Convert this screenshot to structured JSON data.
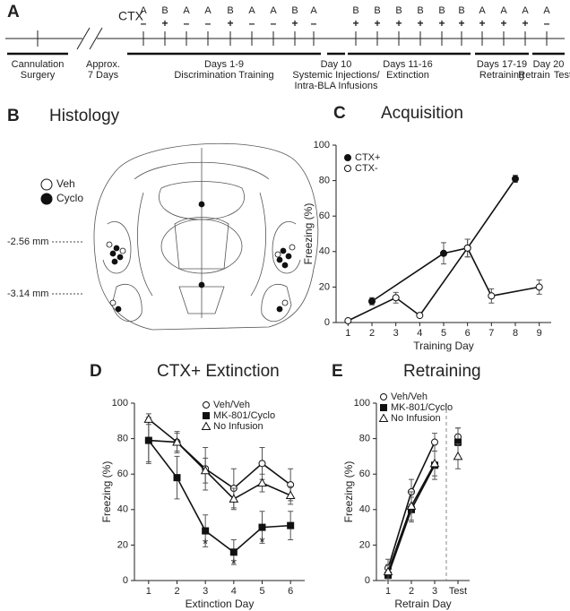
{
  "timeline": {
    "panel": "A",
    "ctx_label": "CTX",
    "sessions": [
      {
        "context": "A",
        "sign": "–"
      },
      {
        "context": "B",
        "sign": "+"
      },
      {
        "context": "A",
        "sign": "–"
      },
      {
        "context": "A",
        "sign": "–"
      },
      {
        "context": "B",
        "sign": "+"
      },
      {
        "context": "A",
        "sign": "–"
      },
      {
        "context": "A",
        "sign": "–"
      },
      {
        "context": "B",
        "sign": "+"
      },
      {
        "context": "A",
        "sign": "–"
      },
      {
        "context": "B",
        "sign": "+"
      },
      {
        "context": "B",
        "sign": "+"
      },
      {
        "context": "B",
        "sign": "+"
      },
      {
        "context": "B",
        "sign": "+"
      },
      {
        "context": "B",
        "sign": "+"
      },
      {
        "context": "B",
        "sign": "+"
      },
      {
        "context": "A",
        "sign": "+"
      },
      {
        "context": "A",
        "sign": "+"
      },
      {
        "context": "A",
        "sign": "+"
      },
      {
        "context": "A",
        "sign": "–"
      }
    ],
    "phases": [
      {
        "lines": [
          "Cannulation",
          "Surgery"
        ]
      },
      {
        "lines": [
          "Approx.",
          "7 Days"
        ]
      },
      {
        "lines": [
          "Days 1-9",
          "Discrimination Training"
        ]
      },
      {
        "lines": [
          "Day 10",
          "Systemic Injections/",
          "Intra-BLA Infusions"
        ]
      },
      {
        "lines": [
          "Days 11-16",
          "Extinction"
        ]
      },
      {
        "lines": [
          "Days 17-19",
          "Retraining"
        ]
      },
      {
        "lines": [
          "Day 20",
          "Retrain",
          "Test"
        ]
      }
    ]
  },
  "histology": {
    "panel": "B",
    "title": "Histology",
    "legend": [
      "Veh",
      "Cyclo"
    ],
    "levels": [
      "-2.56 mm",
      "-3.14 mm"
    ]
  },
  "chart_data": [
    {
      "type": "line",
      "panel": "C",
      "title": "Acquisition",
      "xlabel": "Training Day",
      "ylabel": "Freezing (%)",
      "xlim": [
        0.5,
        9.5
      ],
      "xticks": [
        1,
        2,
        3,
        4,
        5,
        6,
        7,
        8,
        9
      ],
      "ylim": [
        0,
        100
      ],
      "yticks": [
        0,
        20,
        40,
        60,
        80,
        100
      ],
      "series": [
        {
          "name": "CTX+",
          "marker": "filled-circle",
          "x": [
            2,
            5,
            6,
            8
          ],
          "values": [
            12,
            39,
            42,
            81
          ],
          "errors": [
            2,
            6,
            5,
            2
          ]
        },
        {
          "name": "CTX-",
          "marker": "open-circle",
          "x": [
            1,
            3,
            4,
            6,
            7,
            9
          ],
          "values": [
            1,
            14,
            4,
            42,
            15,
            20
          ],
          "errors": [
            1,
            3,
            1,
            5,
            4,
            4
          ]
        }
      ]
    },
    {
      "type": "line",
      "panel": "D",
      "title": "CTX+ Extinction",
      "xlabel": "Extinction Day",
      "ylabel": "Freezing (%)",
      "xlim": [
        0.5,
        6.5
      ],
      "xticks": [
        1,
        2,
        3,
        4,
        5,
        6
      ],
      "x": [
        1,
        2,
        3,
        4,
        5,
        6
      ],
      "ylim": [
        0,
        100
      ],
      "yticks": [
        0,
        20,
        40,
        60,
        80,
        100
      ],
      "series": [
        {
          "name": "Veh/Veh",
          "marker": "open-circle",
          "values": [
            79,
            78,
            63,
            52,
            66,
            54
          ],
          "errors": [
            12,
            6,
            12,
            11,
            9,
            9
          ]
        },
        {
          "name": "MK-801/Cyclo",
          "marker": "filled-square",
          "values": [
            79,
            58,
            28,
            16,
            30,
            31
          ],
          "errors": [
            13,
            12,
            9,
            7,
            9,
            8
          ]
        },
        {
          "name": "No Infusion",
          "marker": "open-triangle",
          "values": [
            91,
            78,
            62,
            46,
            55,
            48
          ],
          "errors": [
            3,
            5,
            7,
            6,
            5,
            5
          ]
        }
      ],
      "annotations": [
        {
          "text": "*",
          "x": 3,
          "y": 20
        },
        {
          "text": "*",
          "x": 4,
          "y": 9
        },
        {
          "text": "*",
          "x": 5,
          "y": 21
        }
      ]
    },
    {
      "type": "line",
      "panel": "E",
      "title": "Retraining",
      "xlabel": "Retrain Day",
      "ylabel": "Freezing (%)",
      "categories": [
        "1",
        "2",
        "3",
        "Test"
      ],
      "separate_last": true,
      "ylim": [
        0,
        100
      ],
      "yticks": [
        0,
        20,
        40,
        60,
        80,
        100
      ],
      "series": [
        {
          "name": "Veh/Veh",
          "marker": "open-circle",
          "values": [
            7,
            50,
            78,
            81
          ],
          "errors": [
            5,
            7,
            5,
            5
          ]
        },
        {
          "name": "MK-801/Cyclo",
          "marker": "filled-square",
          "values": [
            3,
            40,
            65,
            78
          ],
          "errors": [
            3,
            7,
            8,
            8
          ]
        },
        {
          "name": "No Infusion",
          "marker": "open-triangle",
          "values": [
            5,
            42,
            66,
            70
          ],
          "errors": [
            4,
            8,
            7,
            7
          ]
        }
      ]
    }
  ]
}
